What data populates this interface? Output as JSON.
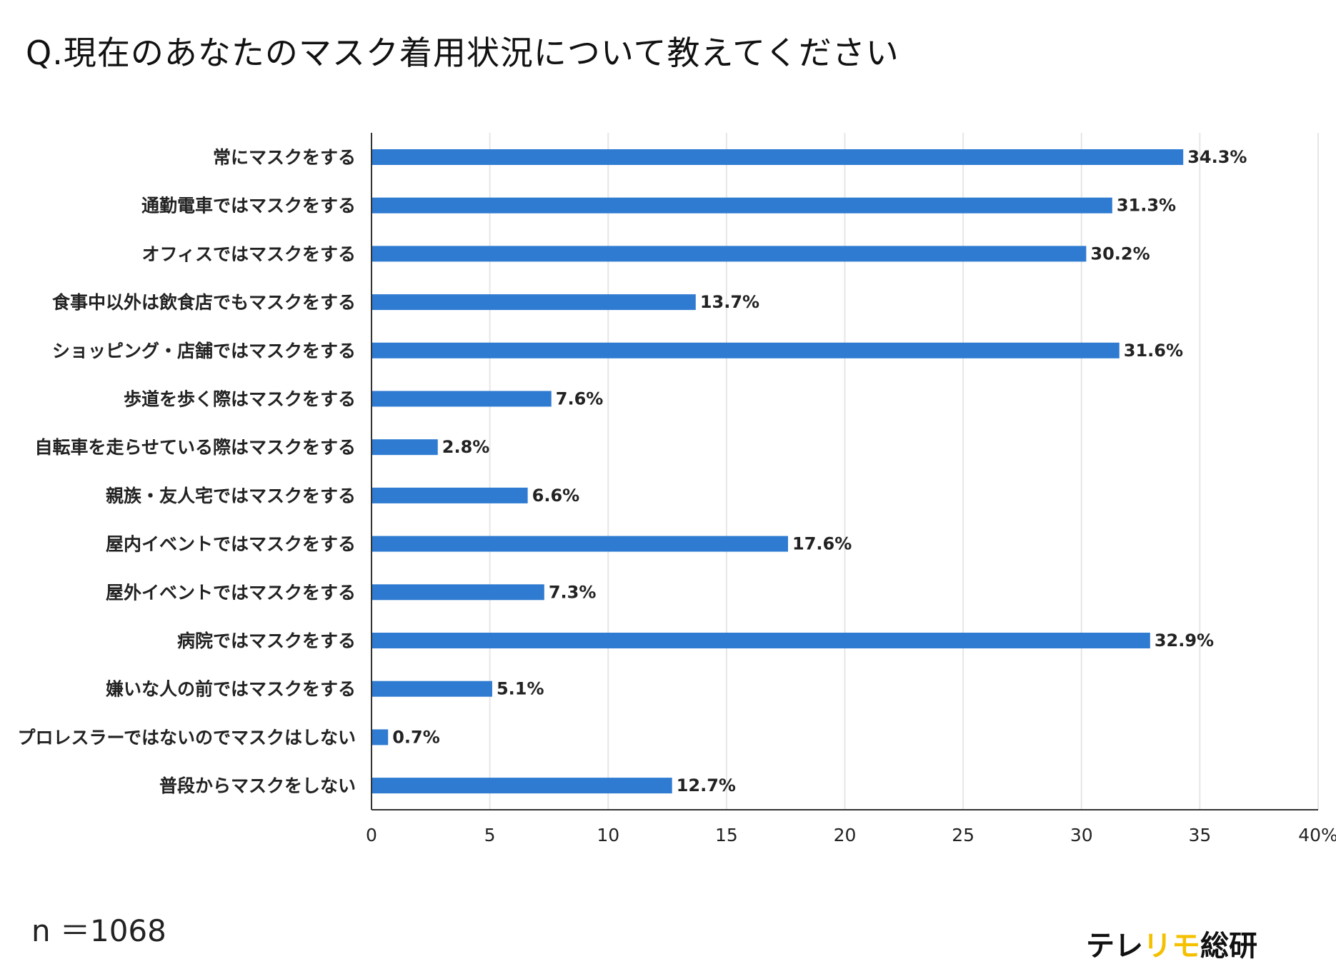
{
  "title": "Q.現在のあなたのマスク着用状況について教えてください",
  "sample_size": "n ＝1068",
  "brand": {
    "part1": "テレ",
    "part2": "リモ",
    "part3": "総研",
    "colors": {
      "dark": "#111111",
      "accent": "#f5c000"
    }
  },
  "colors": {
    "bar": "#2f7bd1",
    "grid": "#e6e6e6",
    "axis": "#333333"
  },
  "chart_data": {
    "type": "bar",
    "orientation": "horizontal",
    "title": "Q.現在のあなたのマスク着用状況について教えてください",
    "xlabel": "",
    "ylabel": "",
    "xlim": [
      0,
      40
    ],
    "ticks": [
      0,
      5,
      10,
      15,
      20,
      25,
      30,
      35,
      40
    ],
    "tick_labels": [
      "0",
      "5",
      "10",
      "15",
      "20",
      "25",
      "30",
      "35",
      "40%"
    ],
    "grid": true,
    "categories": [
      "常にマスクをする",
      "通勤電車ではマスクをする",
      "オフィスではマスクをする",
      "食事中以外は飲食店でもマスクをする",
      "ショッピング・店舗ではマスクをする",
      "歩道を歩く際はマスクをする",
      "自転車を走らせている際はマスクをする",
      "親族・友人宅ではマスクをする",
      "屋内イベントではマスクをする",
      "屋外イベントではマスクをする",
      "病院ではマスクをする",
      "嫌いな人の前ではマスクをする",
      "プロレスラーではないのでマスクはしない",
      "普段からマスクをしない"
    ],
    "values": [
      34.3,
      31.3,
      30.2,
      13.7,
      31.6,
      7.6,
      2.8,
      6.6,
      17.6,
      7.3,
      32.9,
      5.1,
      0.7,
      12.7
    ],
    "value_labels": [
      "34.3%",
      "31.3%",
      "30.2%",
      "13.7%",
      "31.6%",
      "7.6%",
      "2.8%",
      "6.6%",
      "17.6%",
      "7.3%",
      "32.9%",
      "5.1%",
      "0.7%",
      "12.7%"
    ]
  }
}
